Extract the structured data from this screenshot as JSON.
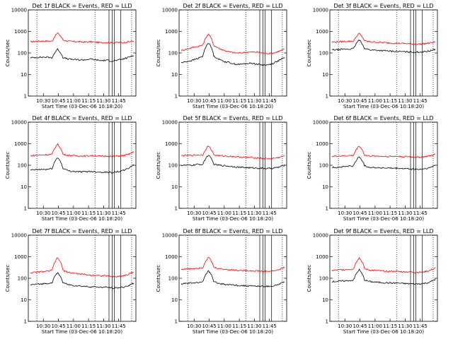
{
  "chart_data": [
    {
      "type": "line",
      "title": "Det 1f BLACK = Events, RED = LLD",
      "xlabel": "Start Time (03-Dec-06 10:18:20)",
      "ylabel": "Counts/sec",
      "xticks": [
        "10:30",
        "10:45",
        "11:00",
        "11:15",
        "11:30",
        "11:45"
      ],
      "yticks": [
        "1",
        "10",
        "100",
        "1000",
        "10000"
      ],
      "ylim": [
        1,
        10000
      ],
      "y_scale": "log",
      "series": [
        {
          "color": "#ff0000",
          "values": [
            330,
            350,
            360,
            360,
            350,
            850,
            400,
            350,
            340,
            330,
            320,
            330,
            320,
            300,
            310,
            300,
            310,
            300,
            330,
            360
          ]
        },
        {
          "color": "#000000",
          "values": [
            60,
            62,
            64,
            64,
            60,
            150,
            60,
            52,
            50,
            48,
            48,
            52,
            48,
            44,
            46,
            42,
            46,
            52,
            62,
            80
          ]
        }
      ]
    },
    {
      "type": "line",
      "title": "Det 2f BLACK = Events, RED = LLD",
      "xlabel": "Start Time (03-Dec-06 10:18:20)",
      "ylabel": "Counts/sec",
      "xticks": [
        "10:30",
        "10:45",
        "11:00",
        "11:15",
        "11:30",
        "11:45"
      ],
      "yticks": [
        "1",
        "10",
        "100",
        "1000",
        "10000"
      ],
      "ylim": [
        1,
        10000
      ],
      "y_scale": "log",
      "series": [
        {
          "color": "#ff0000",
          "values": [
            130,
            150,
            180,
            200,
            230,
            750,
            220,
            160,
            130,
            110,
            100,
            100,
            110,
            110,
            110,
            100,
            95,
            100,
            120,
            150
          ]
        },
        {
          "color": "#000000",
          "values": [
            35,
            40,
            45,
            55,
            70,
            300,
            70,
            50,
            40,
            35,
            30,
            30,
            32,
            34,
            30,
            28,
            28,
            34,
            45,
            60
          ]
        }
      ]
    },
    {
      "type": "line",
      "title": "Det 3f BLACK = Events, RED = LLD",
      "xlabel": "Start Time (03-Dec-06 10:18:20)",
      "ylabel": "Counts/sec",
      "xticks": [
        "10:30",
        "10:45",
        "11:00",
        "11:15",
        "11:30",
        "11:45"
      ],
      "yticks": [
        "1",
        "10",
        "100",
        "1000",
        "10000"
      ],
      "ylim": [
        1,
        10000
      ],
      "y_scale": "log",
      "series": [
        {
          "color": "#ff0000",
          "values": [
            320,
            330,
            340,
            350,
            350,
            800,
            360,
            330,
            320,
            310,
            300,
            290,
            280,
            280,
            270,
            260,
            260,
            270,
            290,
            330
          ]
        },
        {
          "color": "#000000",
          "values": [
            140,
            140,
            150,
            150,
            160,
            400,
            160,
            140,
            135,
            130,
            125,
            120,
            118,
            115,
            112,
            110,
            110,
            115,
            125,
            150
          ]
        }
      ]
    },
    {
      "type": "line",
      "title": "Det 4f BLACK = Events, RED = LLD",
      "xlabel": "Start Time (03-Dec-06 10:18:20)",
      "ylabel": "Counts/sec",
      "xticks": [
        "10:30",
        "10:45",
        "11:00",
        "11:15",
        "11:30",
        "11:45"
      ],
      "yticks": [
        "1",
        "10",
        "100",
        "1000",
        "10000"
      ],
      "ylim": [
        1,
        10000
      ],
      "y_scale": "log",
      "series": [
        {
          "color": "#ff0000",
          "values": [
            280,
            290,
            300,
            310,
            320,
            950,
            320,
            290,
            280,
            270,
            270,
            280,
            280,
            260,
            270,
            260,
            270,
            280,
            320,
            420
          ]
        },
        {
          "color": "#000000",
          "values": [
            60,
            62,
            64,
            64,
            70,
            230,
            70,
            55,
            52,
            50,
            50,
            52,
            50,
            48,
            48,
            46,
            50,
            56,
            70,
            110
          ]
        }
      ]
    },
    {
      "type": "line",
      "title": "Det 5f BLACK = Events, RED = LLD",
      "xlabel": "Start Time (03-Dec-06 10:18:20)",
      "ylabel": "Counts/sec",
      "xticks": [
        "10:30",
        "10:45",
        "11:00",
        "11:15",
        "11:30",
        "11:45"
      ],
      "yticks": [
        "1",
        "10",
        "100",
        "1000",
        "10000"
      ],
      "ylim": [
        1,
        10000
      ],
      "y_scale": "log",
      "series": [
        {
          "color": "#ff0000",
          "values": [
            280,
            290,
            290,
            300,
            300,
            800,
            300,
            280,
            270,
            260,
            250,
            240,
            230,
            230,
            220,
            210,
            200,
            210,
            230,
            280
          ]
        },
        {
          "color": "#000000",
          "values": [
            100,
            100,
            100,
            110,
            110,
            300,
            110,
            100,
            95,
            90,
            85,
            80,
            78,
            76,
            74,
            72,
            70,
            74,
            82,
            100
          ]
        }
      ]
    },
    {
      "type": "line",
      "title": "Det 6f BLACK = Events, RED = LLD",
      "xlabel": "Start Time (03-Dec-06 10:18:20)",
      "ylabel": "Counts/sec",
      "xticks": [
        "10:30",
        "10:45",
        "11:00",
        "11:15",
        "11:30",
        "11:45"
      ],
      "yticks": [
        "1",
        "10",
        "100",
        "1000",
        "10000"
      ],
      "ylim": [
        1,
        10000
      ],
      "y_scale": "log",
      "series": [
        {
          "color": "#ff0000",
          "values": [
            260,
            270,
            270,
            280,
            290,
            800,
            290,
            270,
            270,
            260,
            260,
            260,
            260,
            250,
            250,
            240,
            240,
            250,
            270,
            320
          ]
        },
        {
          "color": "#000000",
          "values": [
            80,
            80,
            85,
            90,
            95,
            250,
            95,
            80,
            78,
            76,
            74,
            72,
            72,
            70,
            68,
            66,
            64,
            68,
            76,
            100
          ]
        }
      ]
    },
    {
      "type": "line",
      "title": "Det 7f BLACK = Events, RED = LLD",
      "xlabel": "Start Time (03-Dec-06 10:18:20)",
      "ylabel": "Counts/sec",
      "xticks": [
        "10:30",
        "10:45",
        "11:00",
        "11:15",
        "11:30",
        "11:45"
      ],
      "yticks": [
        "1",
        "10",
        "100",
        "1000",
        "10000"
      ],
      "ylim": [
        1,
        10000
      ],
      "y_scale": "log",
      "series": [
        {
          "color": "#ff0000",
          "values": [
            180,
            190,
            200,
            210,
            230,
            900,
            230,
            190,
            170,
            160,
            150,
            140,
            140,
            130,
            130,
            120,
            120,
            130,
            150,
            200
          ]
        },
        {
          "color": "#000000",
          "values": [
            50,
            52,
            55,
            58,
            62,
            180,
            62,
            50,
            46,
            44,
            42,
            40,
            40,
            38,
            38,
            36,
            36,
            38,
            45,
            60
          ]
        }
      ]
    },
    {
      "type": "line",
      "title": "Det 8f BLACK = Events, RED = LLD",
      "xlabel": "Start Time (03-Dec-06 10:18:20)",
      "ylabel": "Counts/sec",
      "xticks": [
        "10:30",
        "10:45",
        "11:00",
        "11:15",
        "11:30",
        "11:45"
      ],
      "yticks": [
        "1",
        "10",
        "100",
        "1000",
        "10000"
      ],
      "ylim": [
        1,
        10000
      ],
      "y_scale": "log",
      "series": [
        {
          "color": "#ff0000",
          "values": [
            260,
            270,
            280,
            300,
            310,
            950,
            320,
            280,
            260,
            250,
            240,
            230,
            230,
            220,
            220,
            210,
            210,
            220,
            250,
            320
          ]
        },
        {
          "color": "#000000",
          "values": [
            55,
            58,
            60,
            62,
            70,
            220,
            70,
            56,
            52,
            50,
            48,
            46,
            45,
            44,
            43,
            42,
            42,
            44,
            52,
            70
          ]
        }
      ]
    },
    {
      "type": "line",
      "title": "Det 9f BLACK = Events, RED = LLD",
      "xlabel": "Start Time (03-Dec-06 10:18:20)",
      "ylabel": "Counts/sec",
      "xticks": [
        "10:30",
        "10:45",
        "11:00",
        "11:15",
        "11:30",
        "11:45"
      ],
      "yticks": [
        "1",
        "10",
        "100",
        "1000",
        "10000"
      ],
      "ylim": [
        1,
        10000
      ],
      "y_scale": "log",
      "series": [
        {
          "color": "#ff0000",
          "values": [
            230,
            240,
            250,
            260,
            270,
            900,
            270,
            240,
            230,
            220,
            210,
            210,
            210,
            200,
            200,
            190,
            190,
            200,
            230,
            300
          ]
        },
        {
          "color": "#000000",
          "values": [
            70,
            72,
            75,
            78,
            82,
            250,
            82,
            70,
            66,
            64,
            62,
            60,
            60,
            58,
            56,
            55,
            55,
            58,
            66,
            90
          ]
        }
      ]
    }
  ]
}
